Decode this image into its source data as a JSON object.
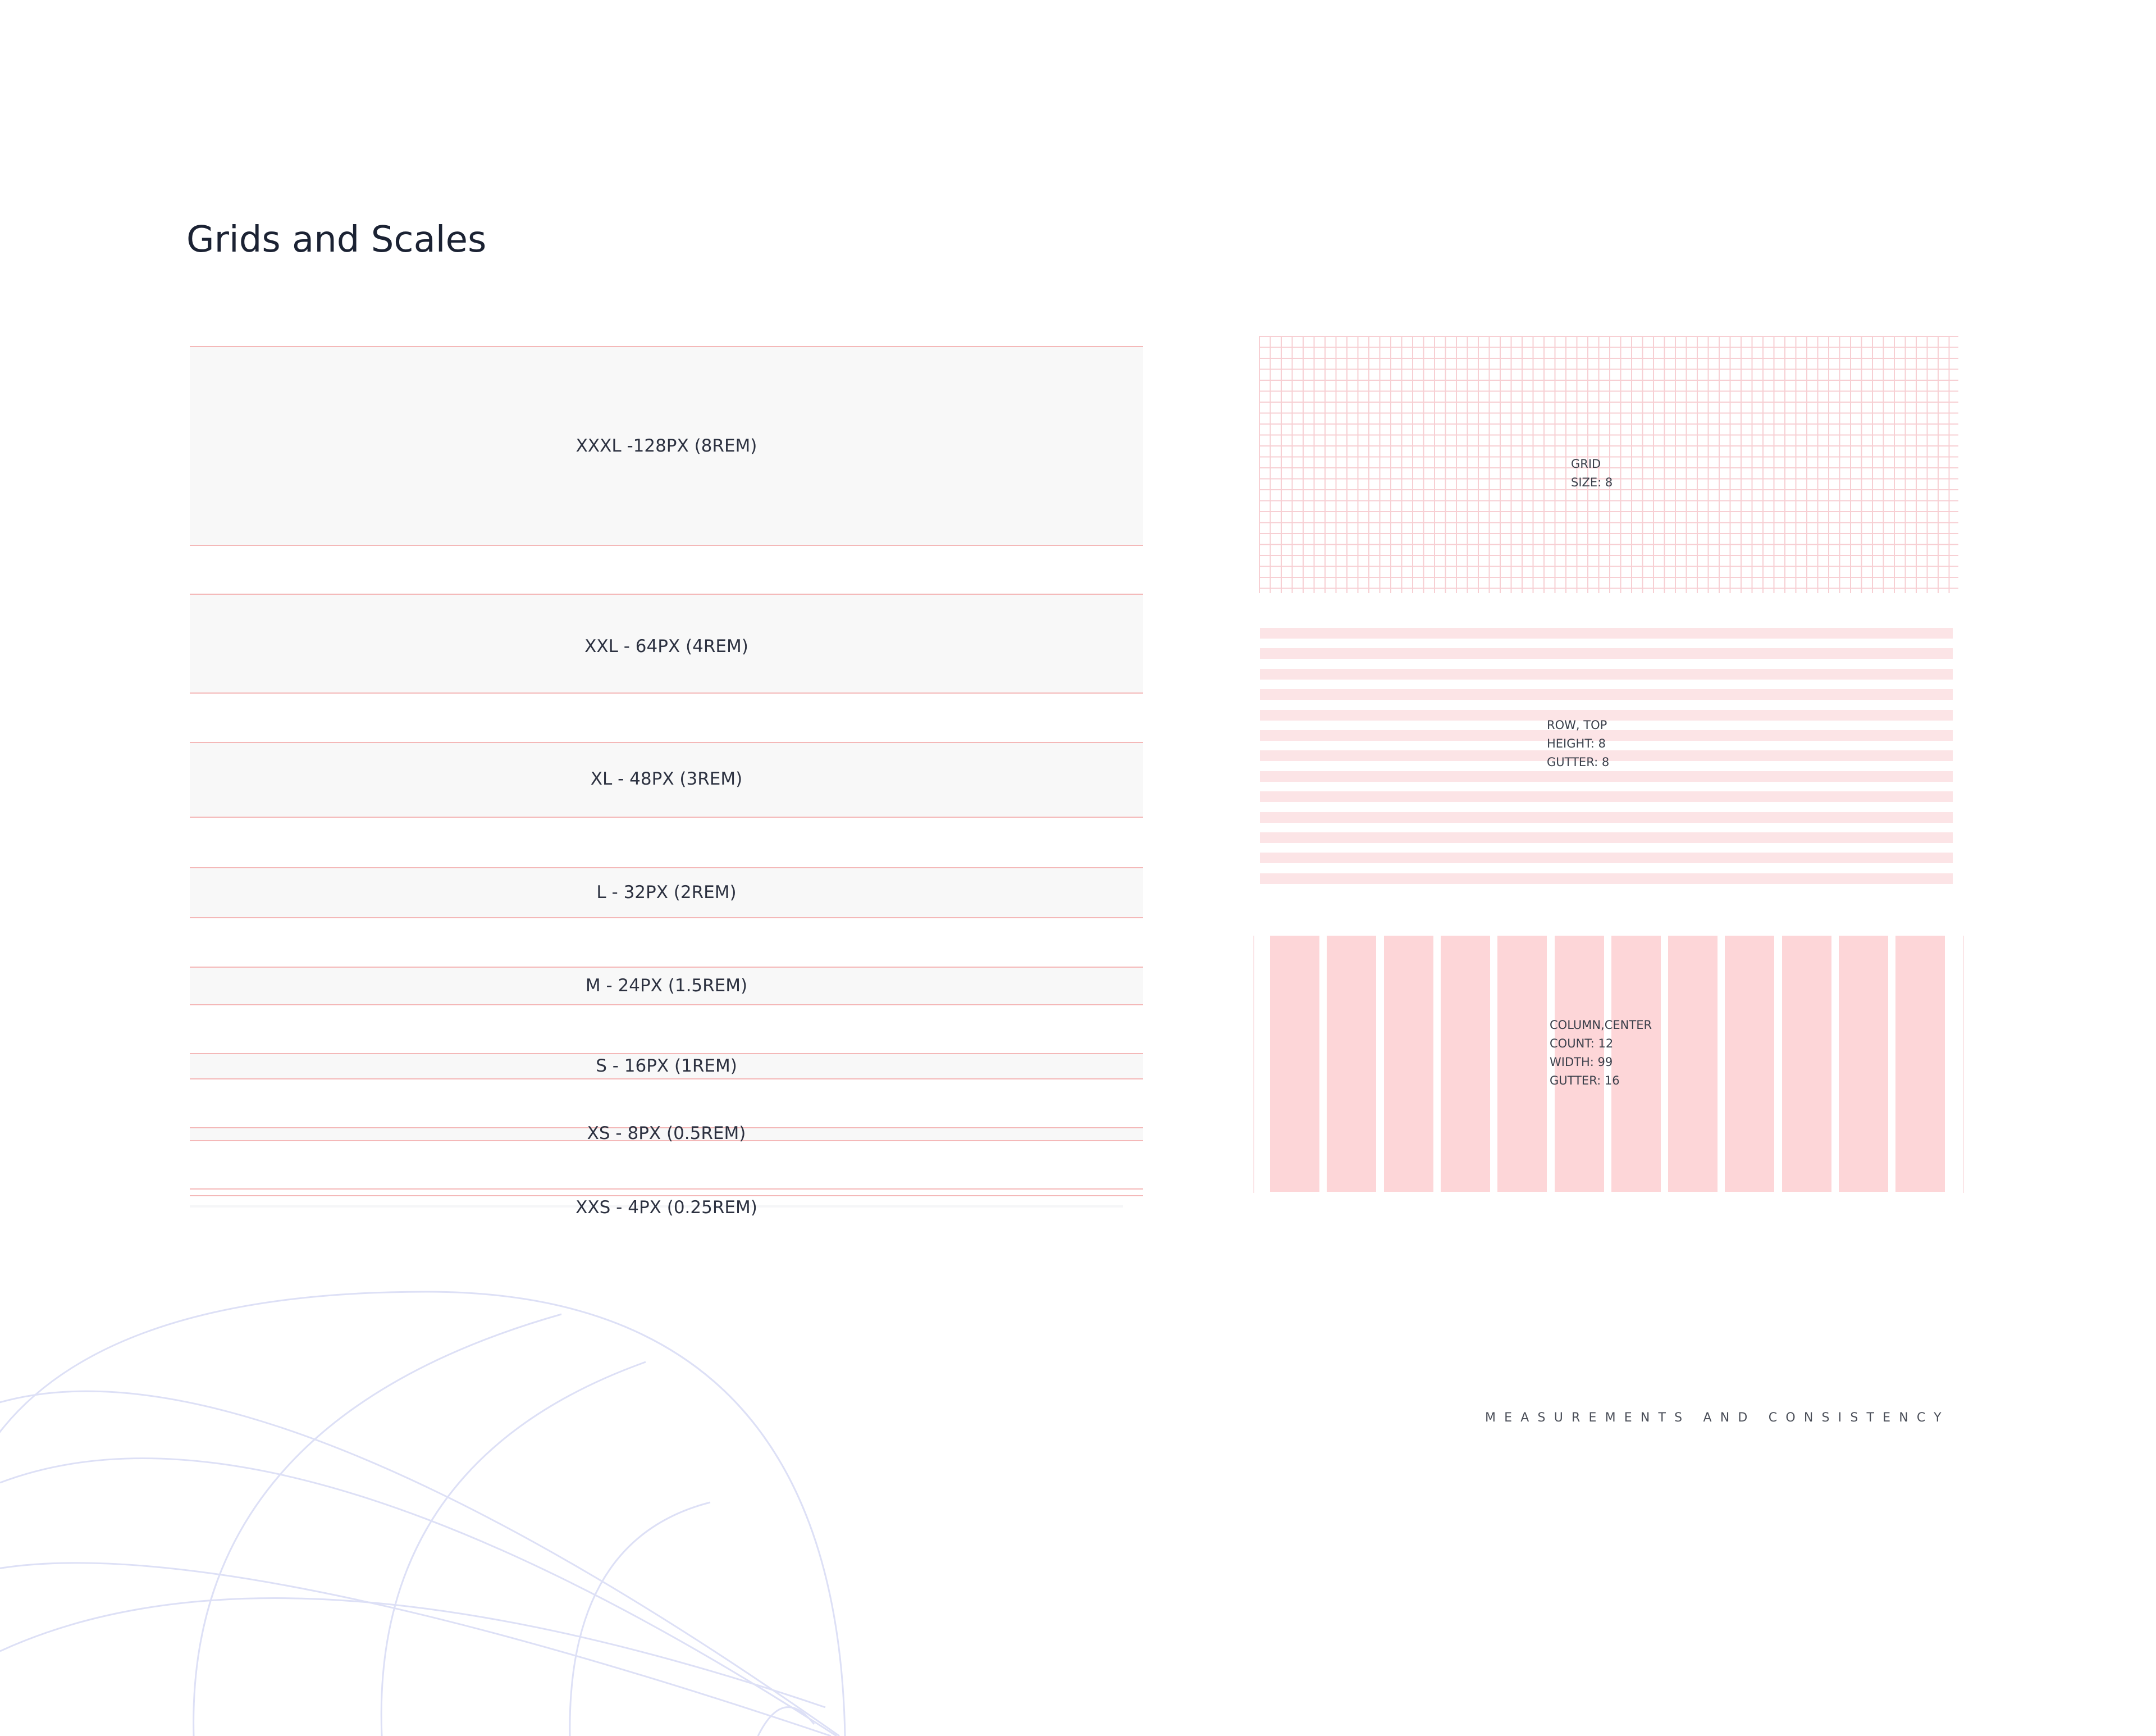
{
  "page_title": "Grids and Scales",
  "spacing_scale": [
    {
      "label": "XXXL -128PX (8REM)"
    },
    {
      "label": "XXL - 64PX (4REM)"
    },
    {
      "label": "XL - 48PX (3REM)"
    },
    {
      "label": "L - 32PX (2REM)"
    },
    {
      "label": "M - 24PX (1.5REM)"
    },
    {
      "label": "S - 16PX (1REM)"
    },
    {
      "label": "XS - 8PX (0.5REM)"
    },
    {
      "label": "XXS - 4PX (0.25REM)"
    }
  ],
  "grid_panel": {
    "lines": [
      "GRID",
      "SIZE: 8"
    ]
  },
  "row_panel": {
    "lines": [
      "ROW, TOP",
      "HEIGHT: 8",
      "GUTTER: 8"
    ]
  },
  "column_panel": {
    "lines": [
      "COLUMN,CENTER",
      "COUNT: 12",
      "WIDTH: 99",
      "GUTTER: 16"
    ]
  },
  "footer_caption": "MEASUREMENTS AND CONSISTENCY",
  "colors": {
    "title": "#1b2233",
    "guide_line": "#f4b8b8",
    "band_fill": "#f8f8f8",
    "grid_line": "#f7cfd3",
    "row_fill": "#fce4e6",
    "column_fill": "#fdd6d8",
    "globe_line": "#dde0f6"
  }
}
